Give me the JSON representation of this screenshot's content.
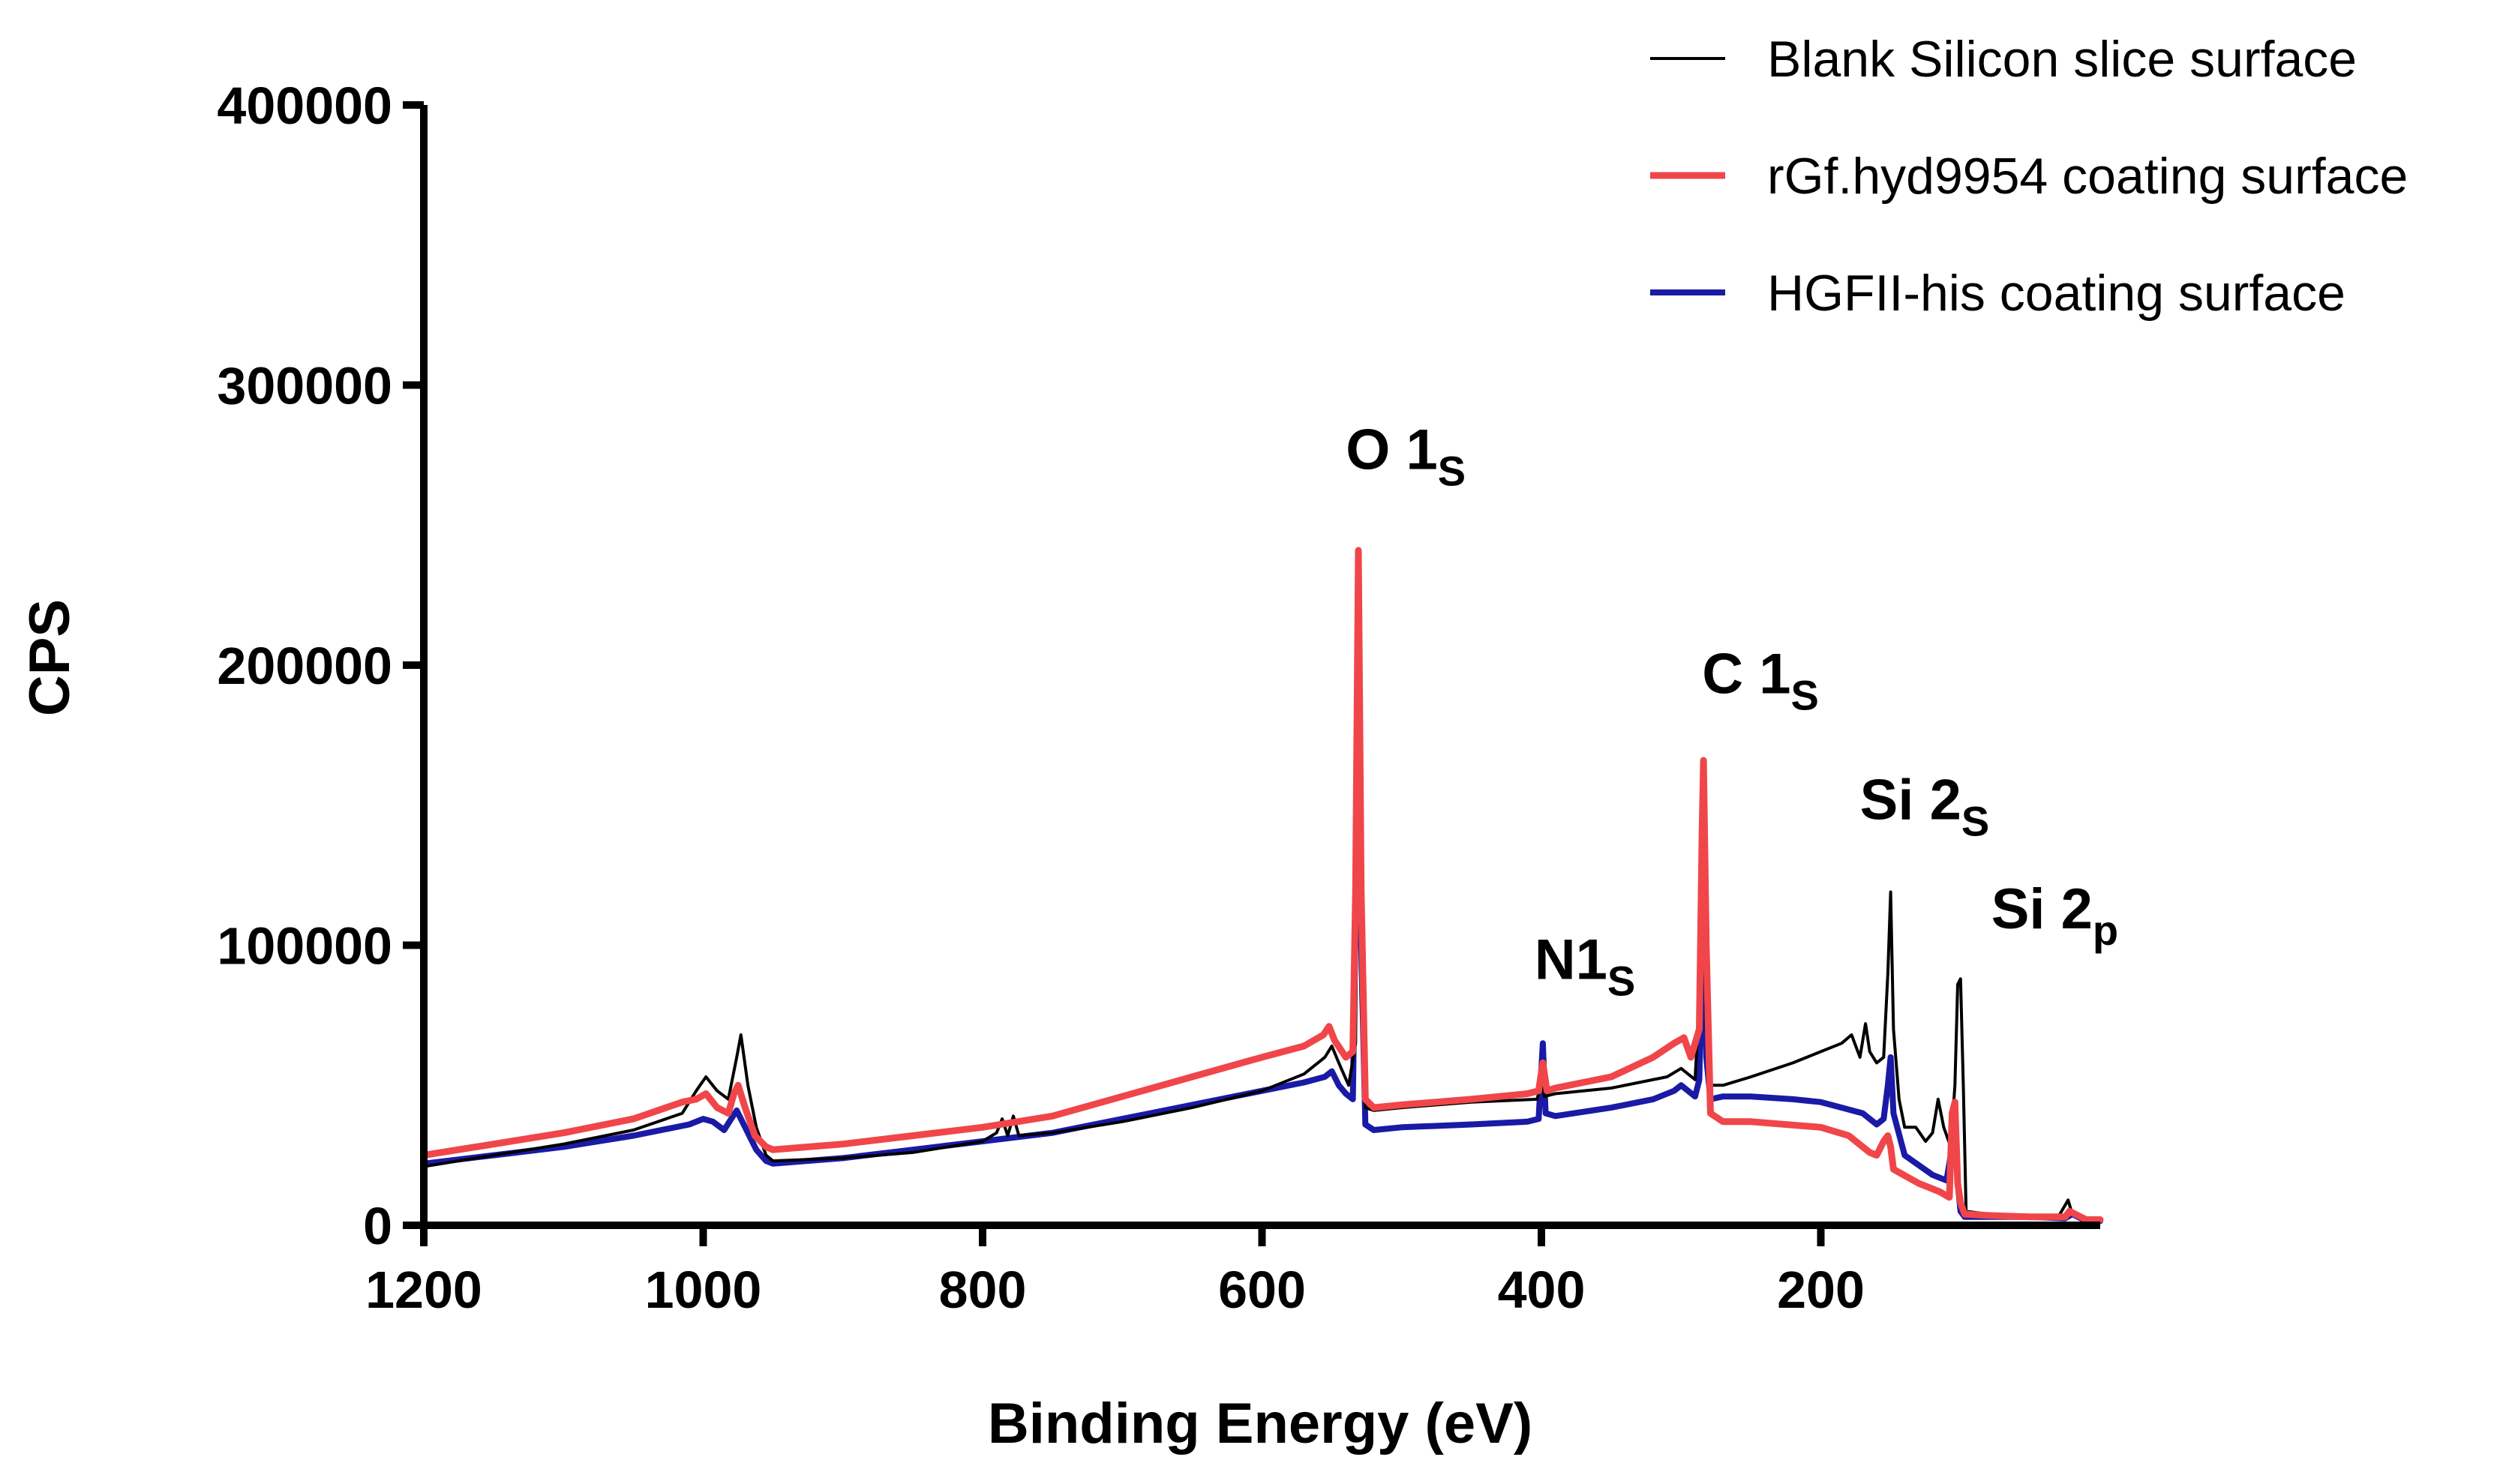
{
  "chart_data": {
    "type": "line",
    "title": "",
    "xlabel": "Binding Energy (eV)",
    "ylabel": "CPS",
    "xlim": [
      1200,
      0
    ],
    "ylim": [
      0,
      400000
    ],
    "x_ticks": [
      1200,
      1000,
      800,
      600,
      400,
      200
    ],
    "x_tick_labels": [
      "1200",
      "1000",
      "800",
      "600",
      "400",
      "200"
    ],
    "y_ticks": [
      0,
      100000,
      200000,
      300000,
      400000
    ],
    "y_tick_labels": [
      "0",
      "100000",
      "200000",
      "300000",
      "400000"
    ],
    "grid": false,
    "legend_position": "top-right",
    "series": [
      {
        "name": "Blank Silicon slice surface",
        "color": "#000000",
        "points": [
          [
            1200,
            21000
          ],
          [
            1150,
            25000
          ],
          [
            1100,
            29000
          ],
          [
            1050,
            34000
          ],
          [
            1015,
            40000
          ],
          [
            1005,
            48000
          ],
          [
            998,
            53000
          ],
          [
            990,
            48000
          ],
          [
            982,
            45000
          ],
          [
            976,
            60000
          ],
          [
            973,
            68000
          ],
          [
            968,
            50000
          ],
          [
            962,
            35000
          ],
          [
            955,
            25000
          ],
          [
            950,
            23000
          ],
          [
            900,
            24000
          ],
          [
            850,
            26000
          ],
          [
            800,
            30000
          ],
          [
            790,
            33000
          ],
          [
            786,
            38000
          ],
          [
            782,
            32000
          ],
          [
            778,
            39000
          ],
          [
            774,
            32000
          ],
          [
            750,
            33000
          ],
          [
            700,
            37000
          ],
          [
            650,
            42000
          ],
          [
            600,
            48000
          ],
          [
            570,
            54000
          ],
          [
            555,
            60000
          ],
          [
            550,
            64000
          ],
          [
            545,
            58000
          ],
          [
            538,
            50000
          ],
          [
            533,
            65000
          ],
          [
            531,
            182000
          ],
          [
            529,
            80000
          ],
          [
            526,
            42000
          ],
          [
            520,
            41000
          ],
          [
            500,
            42000
          ],
          [
            450,
            44000
          ],
          [
            403,
            45000
          ],
          [
            400,
            52000
          ],
          [
            398,
            46000
          ],
          [
            390,
            47000
          ],
          [
            350,
            49000
          ],
          [
            310,
            53000
          ],
          [
            300,
            56000
          ],
          [
            290,
            52000
          ],
          [
            286,
            90000
          ],
          [
            284,
            109000
          ],
          [
            282,
            70000
          ],
          [
            279,
            50000
          ],
          [
            270,
            50000
          ],
          [
            250,
            53000
          ],
          [
            220,
            58000
          ],
          [
            200,
            62000
          ],
          [
            185,
            65000
          ],
          [
            178,
            68000
          ],
          [
            172,
            60000
          ],
          [
            168,
            72000
          ],
          [
            165,
            62000
          ],
          [
            160,
            58000
          ],
          [
            155,
            60000
          ],
          [
            152,
            90000
          ],
          [
            150,
            119000
          ],
          [
            148,
            70000
          ],
          [
            144,
            45000
          ],
          [
            140,
            35000
          ],
          [
            132,
            35000
          ],
          [
            125,
            30000
          ],
          [
            120,
            33000
          ],
          [
            116,
            45000
          ],
          [
            112,
            35000
          ],
          [
            107,
            28000
          ],
          [
            104,
            50000
          ],
          [
            102,
            86000
          ],
          [
            100,
            88000
          ],
          [
            98,
            50000
          ],
          [
            96,
            5000
          ],
          [
            80,
            4000
          ],
          [
            50,
            3000
          ],
          [
            30,
            3000
          ],
          [
            23,
            9000
          ],
          [
            20,
            4000
          ],
          [
            10,
            2000
          ],
          [
            0,
            2000
          ]
        ]
      },
      {
        "name": "rGf.hyd9954 coating surface",
        "color": "#f0464a",
        "points": [
          [
            1200,
            25000
          ],
          [
            1150,
            29000
          ],
          [
            1100,
            33000
          ],
          [
            1050,
            38000
          ],
          [
            1015,
            44000
          ],
          [
            1005,
            45000
          ],
          [
            998,
            47000
          ],
          [
            990,
            42000
          ],
          [
            982,
            40000
          ],
          [
            978,
            47000
          ],
          [
            975,
            50000
          ],
          [
            970,
            42000
          ],
          [
            963,
            32000
          ],
          [
            955,
            28000
          ],
          [
            950,
            27000
          ],
          [
            900,
            29000
          ],
          [
            850,
            32000
          ],
          [
            800,
            35000
          ],
          [
            750,
            39000
          ],
          [
            700,
            46000
          ],
          [
            650,
            53000
          ],
          [
            600,
            60000
          ],
          [
            570,
            64000
          ],
          [
            556,
            68000
          ],
          [
            552,
            71000
          ],
          [
            548,
            66000
          ],
          [
            540,
            60000
          ],
          [
            535,
            62000
          ],
          [
            533,
            120000
          ],
          [
            531,
            241000
          ],
          [
            529,
            120000
          ],
          [
            526,
            45000
          ],
          [
            520,
            42000
          ],
          [
            500,
            43000
          ],
          [
            450,
            45000
          ],
          [
            410,
            47000
          ],
          [
            402,
            48000
          ],
          [
            399,
            58000
          ],
          [
            396,
            48000
          ],
          [
            390,
            49000
          ],
          [
            350,
            53000
          ],
          [
            320,
            60000
          ],
          [
            305,
            65000
          ],
          [
            298,
            67000
          ],
          [
            293,
            60000
          ],
          [
            287,
            70000
          ],
          [
            285,
            140000
          ],
          [
            284,
            166000
          ],
          [
            282,
            100000
          ],
          [
            279,
            40000
          ],
          [
            270,
            37000
          ],
          [
            250,
            37000
          ],
          [
            200,
            35000
          ],
          [
            180,
            32000
          ],
          [
            165,
            26000
          ],
          [
            160,
            25000
          ],
          [
            155,
            30000
          ],
          [
            152,
            32000
          ],
          [
            150,
            28000
          ],
          [
            148,
            20000
          ],
          [
            130,
            15000
          ],
          [
            115,
            12000
          ],
          [
            108,
            10000
          ],
          [
            106,
            40000
          ],
          [
            104,
            44000
          ],
          [
            102,
            15000
          ],
          [
            100,
            8000
          ],
          [
            97,
            4000
          ],
          [
            80,
            3500
          ],
          [
            50,
            3000
          ],
          [
            25,
            3000
          ],
          [
            22,
            5000
          ],
          [
            10,
            2000
          ],
          [
            0,
            2000
          ]
        ]
      },
      {
        "name": "HGFII-his coating surface",
        "color": "#1a1aa6",
        "points": [
          [
            1200,
            22000
          ],
          [
            1150,
            25000
          ],
          [
            1100,
            28000
          ],
          [
            1050,
            32000
          ],
          [
            1010,
            36000
          ],
          [
            1000,
            38000
          ],
          [
            993,
            37000
          ],
          [
            985,
            34000
          ],
          [
            980,
            38000
          ],
          [
            976,
            41000
          ],
          [
            970,
            35000
          ],
          [
            962,
            27000
          ],
          [
            955,
            23000
          ],
          [
            950,
            22000
          ],
          [
            900,
            24000
          ],
          [
            850,
            27000
          ],
          [
            800,
            30000
          ],
          [
            750,
            33000
          ],
          [
            700,
            38000
          ],
          [
            650,
            43000
          ],
          [
            600,
            48000
          ],
          [
            570,
            51000
          ],
          [
            555,
            53000
          ],
          [
            550,
            55000
          ],
          [
            545,
            50000
          ],
          [
            540,
            47000
          ],
          [
            535,
            45000
          ],
          [
            533,
            110000
          ],
          [
            531,
            180000
          ],
          [
            529,
            100000
          ],
          [
            526,
            36000
          ],
          [
            520,
            34000
          ],
          [
            500,
            35000
          ],
          [
            450,
            36000
          ],
          [
            410,
            37000
          ],
          [
            402,
            38000
          ],
          [
            399,
            65000
          ],
          [
            397,
            40000
          ],
          [
            390,
            39000
          ],
          [
            350,
            42000
          ],
          [
            320,
            45000
          ],
          [
            305,
            48000
          ],
          [
            300,
            50000
          ],
          [
            295,
            48000
          ],
          [
            290,
            46000
          ],
          [
            287,
            52000
          ],
          [
            285,
            100000
          ],
          [
            284,
            108000
          ],
          [
            282,
            60000
          ],
          [
            279,
            45000
          ],
          [
            270,
            46000
          ],
          [
            250,
            46000
          ],
          [
            220,
            45000
          ],
          [
            200,
            44000
          ],
          [
            185,
            42000
          ],
          [
            170,
            40000
          ],
          [
            160,
            36000
          ],
          [
            155,
            38000
          ],
          [
            152,
            50000
          ],
          [
            150,
            60000
          ],
          [
            148,
            40000
          ],
          [
            140,
            25000
          ],
          [
            120,
            18000
          ],
          [
            110,
            16000
          ],
          [
            106,
            28000
          ],
          [
            104,
            38000
          ],
          [
            102,
            15000
          ],
          [
            100,
            5000
          ],
          [
            97,
            3000
          ],
          [
            80,
            3000
          ],
          [
            50,
            3000
          ],
          [
            25,
            2500
          ],
          [
            20,
            4000
          ],
          [
            10,
            1500
          ],
          [
            0,
            1500
          ]
        ]
      }
    ],
    "annotations": [
      {
        "main": "O 1",
        "sub": "S",
        "x": 540,
        "y": 270000
      },
      {
        "main": "C 1",
        "sub": "S",
        "x": 285,
        "y": 190000
      },
      {
        "main": "N1",
        "sub": "S",
        "x": 405,
        "y": 88000
      },
      {
        "main": "Si 2",
        "sub": "S",
        "x": 172,
        "y": 145000
      },
      {
        "main": "Si 2",
        "sub": "p",
        "x": 78,
        "y": 106000
      }
    ]
  }
}
